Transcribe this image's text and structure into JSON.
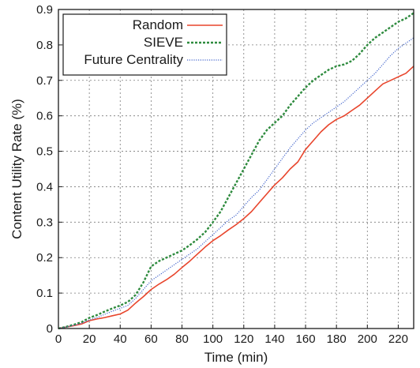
{
  "chart_data": {
    "type": "line",
    "title": "",
    "xlabel": "Time (min)",
    "ylabel": "Content Utility Rate (%)",
    "xlim": [
      0,
      230
    ],
    "ylim": [
      0,
      0.9
    ],
    "xticks": [
      0,
      20,
      40,
      60,
      80,
      100,
      120,
      140,
      160,
      180,
      200,
      220
    ],
    "xtick_labels": [
      "0",
      "20",
      "40",
      "60",
      "80",
      "100",
      "120",
      "140",
      "160",
      "180",
      "200",
      "220"
    ],
    "yticks": [
      0,
      0.1,
      0.2,
      0.3,
      0.4,
      0.5,
      0.6,
      0.7,
      0.8,
      0.9
    ],
    "ytick_labels": [
      "0",
      "0.1",
      "0.2",
      "0.3",
      "0.4",
      "0.5",
      "0.6",
      "0.7",
      "0.8",
      "0.9"
    ],
    "grid": true,
    "legend_position": "top-left",
    "series": [
      {
        "name": "Random",
        "color": "#e8452c",
        "style": "solid",
        "x": [
          0,
          5,
          10,
          15,
          20,
          25,
          30,
          35,
          40,
          45,
          50,
          55,
          60,
          65,
          70,
          75,
          80,
          85,
          90,
          95,
          100,
          105,
          110,
          115,
          120,
          125,
          130,
          135,
          140,
          145,
          150,
          155,
          160,
          165,
          170,
          175,
          180,
          185,
          190,
          195,
          200,
          205,
          210,
          215,
          220,
          225,
          230
        ],
        "y": [
          0,
          0.004,
          0.008,
          0.013,
          0.022,
          0.027,
          0.031,
          0.036,
          0.041,
          0.052,
          0.072,
          0.09,
          0.11,
          0.125,
          0.138,
          0.153,
          0.172,
          0.19,
          0.21,
          0.23,
          0.248,
          0.262,
          0.278,
          0.293,
          0.31,
          0.33,
          0.355,
          0.38,
          0.405,
          0.425,
          0.45,
          0.47,
          0.505,
          0.53,
          0.555,
          0.575,
          0.59,
          0.6,
          0.615,
          0.63,
          0.65,
          0.67,
          0.69,
          0.7,
          0.71,
          0.72,
          0.74
        ]
      },
      {
        "name": "SIEVE",
        "color": "#2e8b3e",
        "style": "dashed",
        "x": [
          0,
          5,
          10,
          15,
          20,
          25,
          30,
          35,
          40,
          45,
          50,
          55,
          60,
          65,
          70,
          75,
          80,
          85,
          90,
          95,
          100,
          105,
          110,
          115,
          120,
          125,
          130,
          135,
          140,
          145,
          150,
          155,
          160,
          165,
          170,
          175,
          180,
          185,
          190,
          195,
          200,
          205,
          210,
          215,
          220,
          225,
          230
        ],
        "y": [
          0,
          0.005,
          0.011,
          0.018,
          0.03,
          0.038,
          0.048,
          0.057,
          0.065,
          0.075,
          0.095,
          0.13,
          0.175,
          0.19,
          0.2,
          0.21,
          0.22,
          0.235,
          0.252,
          0.272,
          0.3,
          0.33,
          0.37,
          0.41,
          0.45,
          0.49,
          0.53,
          0.56,
          0.58,
          0.6,
          0.63,
          0.655,
          0.68,
          0.7,
          0.715,
          0.73,
          0.74,
          0.745,
          0.755,
          0.775,
          0.8,
          0.82,
          0.835,
          0.85,
          0.865,
          0.875,
          0.89
        ]
      },
      {
        "name": "Future Centrality",
        "color": "#4466cc",
        "style": "dotted",
        "x": [
          0,
          5,
          10,
          15,
          20,
          25,
          30,
          35,
          40,
          45,
          50,
          55,
          60,
          65,
          70,
          75,
          80,
          85,
          90,
          95,
          100,
          105,
          110,
          115,
          120,
          125,
          130,
          135,
          140,
          145,
          150,
          155,
          160,
          165,
          170,
          175,
          180,
          185,
          190,
          195,
          200,
          205,
          210,
          215,
          220,
          225,
          230
        ],
        "y": [
          0,
          0.004,
          0.009,
          0.015,
          0.024,
          0.031,
          0.04,
          0.049,
          0.057,
          0.065,
          0.085,
          0.11,
          0.135,
          0.15,
          0.165,
          0.18,
          0.195,
          0.21,
          0.225,
          0.245,
          0.265,
          0.285,
          0.305,
          0.32,
          0.345,
          0.37,
          0.39,
          0.42,
          0.45,
          0.48,
          0.51,
          0.535,
          0.56,
          0.58,
          0.595,
          0.61,
          0.625,
          0.64,
          0.66,
          0.68,
          0.7,
          0.72,
          0.745,
          0.77,
          0.79,
          0.805,
          0.82
        ]
      }
    ]
  }
}
